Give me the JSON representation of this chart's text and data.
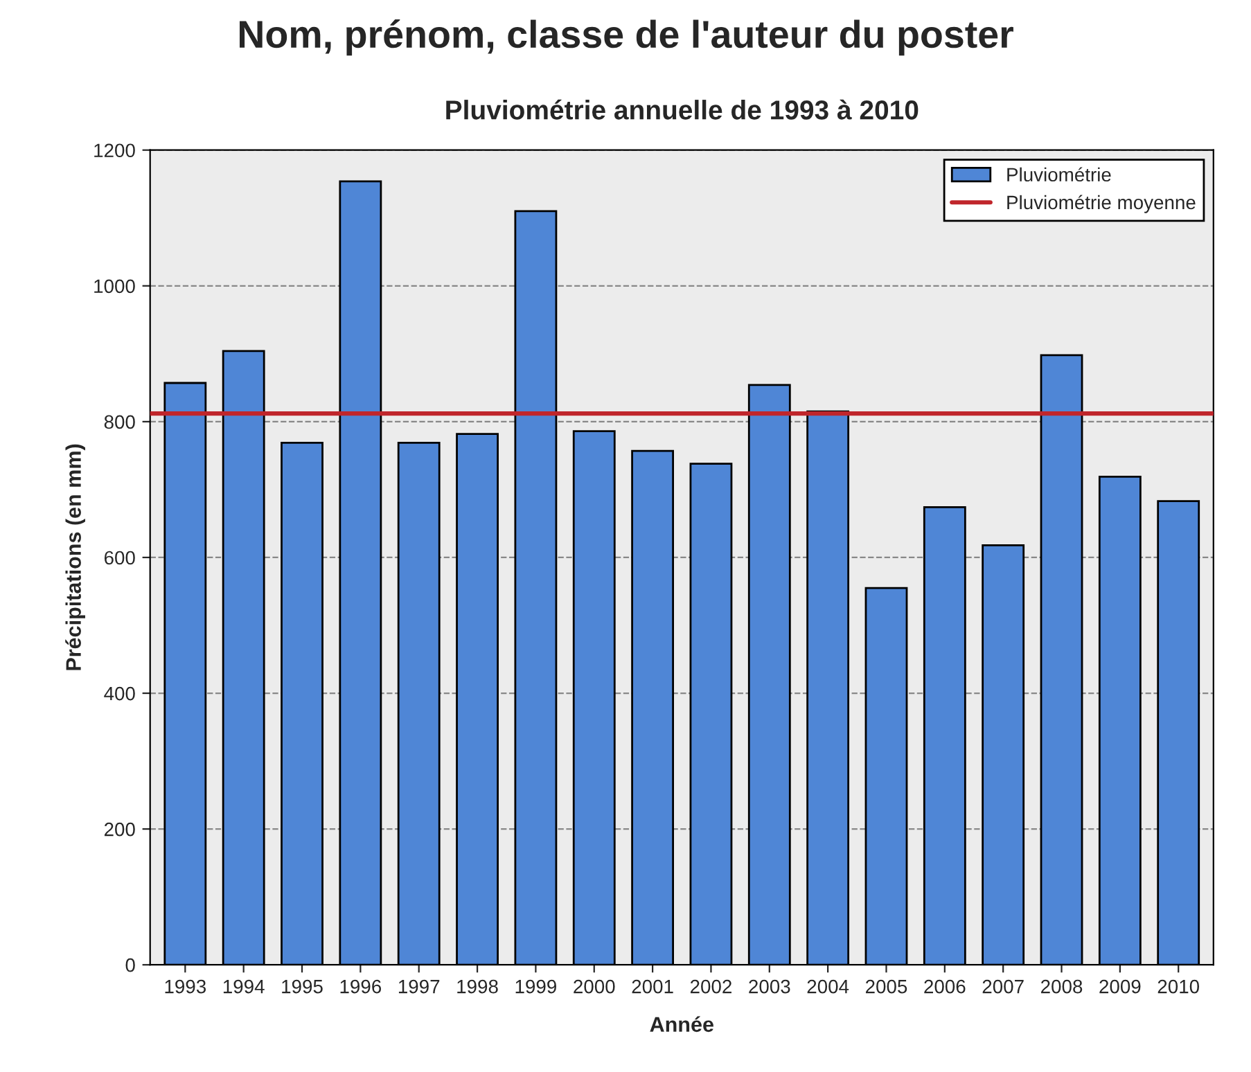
{
  "chart_data": {
    "type": "bar",
    "title": "Pluviométrie annuelle de 1993 à 2010",
    "xlabel": "Année",
    "ylabel": "Précipitations (en mm)",
    "annotations": [
      "Nom, prénom, classe de l'auteur du poster"
    ],
    "categories": [
      "1993",
      "1994",
      "1995",
      "1996",
      "1997",
      "1998",
      "1999",
      "2000",
      "2001",
      "2002",
      "2003",
      "2004",
      "2005",
      "2006",
      "2007",
      "2008",
      "2009",
      "2010"
    ],
    "series": [
      {
        "name": "Pluviométrie",
        "color": "#4f86d6",
        "values": [
          857,
          904,
          769,
          1154,
          769,
          782,
          1110,
          786,
          757,
          738,
          854,
          815,
          555,
          674,
          618,
          898,
          719,
          683
        ]
      }
    ],
    "ref_lines": [
      {
        "axis": "y",
        "value": 812,
        "label": "Pluviométrie moyenne",
        "color": "#c0262b",
        "line_style": "solid"
      }
    ],
    "ylim": [
      0,
      1200
    ],
    "yticks": [
      0,
      200,
      400,
      600,
      800,
      1000,
      1200
    ],
    "grid": "y",
    "legend": "top right"
  }
}
